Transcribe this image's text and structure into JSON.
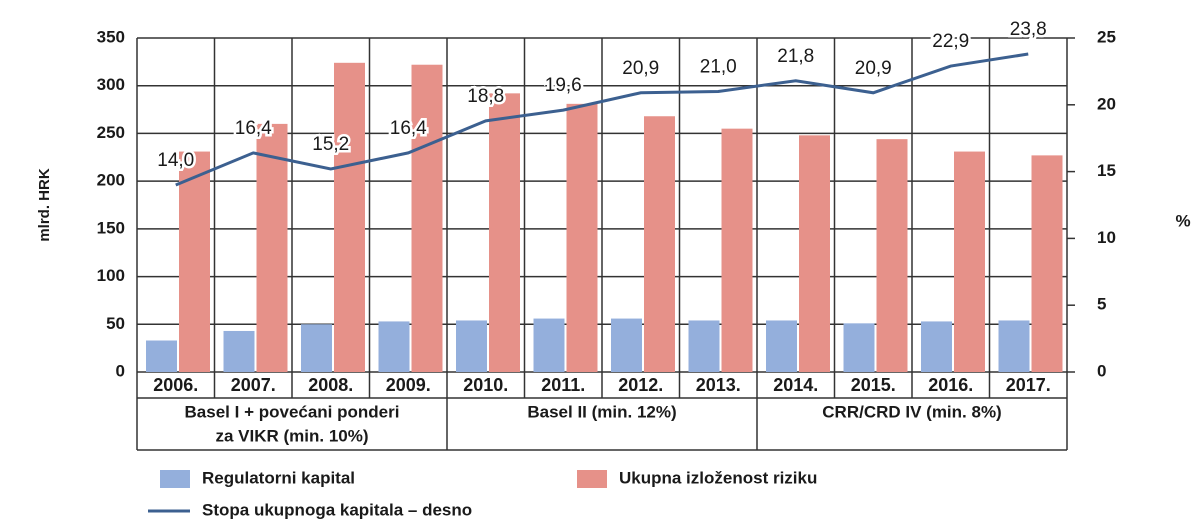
{
  "chart_data": {
    "type": "bar",
    "categories": [
      "2006.",
      "2007.",
      "2008.",
      "2009.",
      "2010.",
      "2011.",
      "2012.",
      "2013.",
      "2014.",
      "2015.",
      "2016.",
      "2017."
    ],
    "groups": [
      [
        "Basel I + povećani ponderi",
        "za VIKR (min. 10%)"
      ],
      [
        "Basel II (min. 12%)"
      ],
      [
        "CRR/CRD IV (min. 8%)"
      ]
    ],
    "y_label": "mlrd. HRK",
    "y2_label": "%",
    "ylim": [
      0,
      350
    ],
    "yticks": [
      0,
      50,
      100,
      150,
      200,
      250,
      300,
      350
    ],
    "y2lim": [
      0,
      25
    ],
    "y2ticks": [
      0,
      5,
      10,
      15,
      20,
      25
    ],
    "grid": true,
    "series": [
      {
        "name": "Regulatorni kapital",
        "color": "#94afdc",
        "values": [
          33,
          43,
          50,
          53,
          54,
          56,
          56,
          54,
          54,
          51,
          53,
          54
        ]
      },
      {
        "name": "Ukupna izloženost riziku",
        "color": "#e69189",
        "values": [
          231,
          260,
          324,
          322,
          292,
          281,
          268,
          255,
          248,
          244,
          231,
          227
        ]
      },
      {
        "name": "Stopa ukupnoga kapitala – desno",
        "type": "line",
        "axis": "y2",
        "color": "#3c6090",
        "values": [
          14.0,
          16.4,
          15.2,
          16.4,
          18.8,
          19.6,
          20.9,
          21.0,
          21.8,
          20.9,
          22.9,
          23.8
        ],
        "value_labels": [
          "14,0",
          "16,4",
          "15,2",
          "16,4",
          "18,8",
          "19,6",
          "20,9",
          "21,0",
          "21,8",
          "20,9",
          "22,9",
          "23,8"
        ]
      }
    ]
  }
}
